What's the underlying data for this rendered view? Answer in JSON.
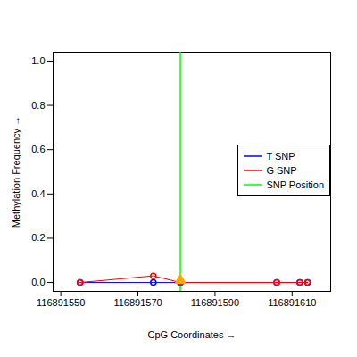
{
  "chart_data": {
    "type": "line",
    "x_label": "CpG Coordinates",
    "y_label": "Methylation Frequency",
    "x": [
      116891555,
      116891574,
      116891581,
      116891606,
      116891612,
      116891614
    ],
    "series": [
      {
        "name": "T SNP",
        "color": "#0000ff",
        "values": [
          0,
          0,
          0,
          0,
          0,
          0
        ],
        "marker": "circle",
        "line_style": "solid"
      },
      {
        "name": "G SNP",
        "color": "#ff0000",
        "values": [
          0,
          0.03,
          0,
          0,
          0,
          0
        ],
        "marker": "circle",
        "line_style": "solid"
      }
    ],
    "snp_line": {
      "name": "SNP Position",
      "x": 116891581,
      "color": "#00ff00"
    },
    "snp_marker": {
      "x": 116891581,
      "y": 0.01,
      "color": "#ffa500",
      "marker": "triangle"
    },
    "xlim": [
      116891548,
      116891620
    ],
    "xticks": [
      116891550,
      116891570,
      116891590,
      116891610
    ],
    "ylim": [
      -0.04,
      1.04
    ],
    "yticks": [
      {
        "value": 0,
        "label": "0.0"
      },
      {
        "value": 0.2,
        "label": "0.2"
      },
      {
        "value": 0.4,
        "label": "0.4"
      },
      {
        "value": 0.6,
        "label": "0.6"
      },
      {
        "value": 0.8,
        "label": "0.8"
      },
      {
        "value": 1,
        "label": "1.0"
      }
    ],
    "legend": "right",
    "grid": false
  }
}
